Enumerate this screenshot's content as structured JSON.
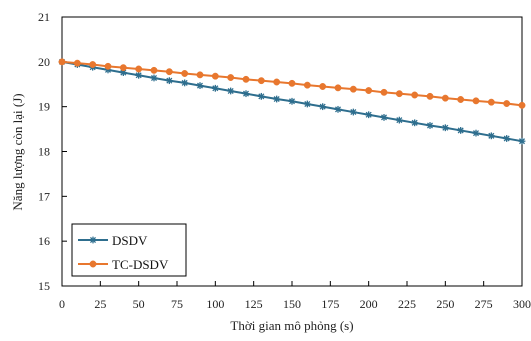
{
  "chart_data": {
    "type": "line",
    "title": "",
    "xlabel": "Thời gian mô phỏng (s)",
    "ylabel": "Năng lượng còn lại (J)",
    "xlim": [
      0,
      300
    ],
    "ylim": [
      15,
      21
    ],
    "x_ticks": [
      0,
      25,
      50,
      75,
      100,
      125,
      150,
      175,
      200,
      225,
      250,
      275,
      300
    ],
    "y_ticks": [
      15,
      16,
      17,
      18,
      19,
      20,
      21
    ],
    "grid": false,
    "legend_position": "bottom-left",
    "x": [
      0,
      10,
      20,
      30,
      40,
      50,
      60,
      70,
      80,
      90,
      100,
      110,
      120,
      130,
      140,
      150,
      160,
      170,
      180,
      190,
      200,
      210,
      220,
      230,
      240,
      250,
      260,
      270,
      280,
      290,
      300
    ],
    "series": [
      {
        "name": "DSDV",
        "color": "#2e6e8e",
        "marker": "asterisk",
        "values": [
          20.0,
          19.94,
          19.88,
          19.82,
          19.76,
          19.7,
          19.64,
          19.58,
          19.53,
          19.47,
          19.41,
          19.35,
          19.29,
          19.23,
          19.17,
          19.12,
          19.06,
          19.0,
          18.94,
          18.88,
          18.82,
          18.76,
          18.7,
          18.64,
          18.58,
          18.53,
          18.47,
          18.41,
          18.35,
          18.29,
          18.23
        ]
      },
      {
        "name": "TC-DSDV",
        "color": "#e8772e",
        "marker": "circle",
        "values": [
          20.0,
          19.97,
          19.94,
          19.9,
          19.87,
          19.84,
          19.81,
          19.78,
          19.74,
          19.71,
          19.68,
          19.65,
          19.61,
          19.58,
          19.55,
          19.52,
          19.48,
          19.45,
          19.42,
          19.39,
          19.36,
          19.32,
          19.29,
          19.26,
          19.23,
          19.19,
          19.16,
          19.13,
          19.1,
          19.07,
          19.03
        ]
      }
    ]
  }
}
